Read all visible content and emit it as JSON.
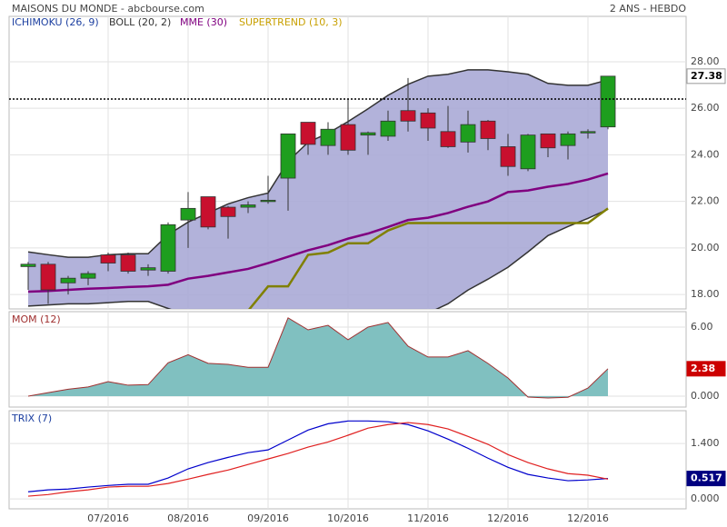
{
  "chart_data": [
    {
      "type": "candlestick",
      "title": "MAISONS DU MONDE - abcbourse.com",
      "subtitle": "2 ANS - HEBDO",
      "categories": [
        null,
        null,
        null,
        null,
        "07/2016",
        null,
        null,
        null,
        "08/2016",
        null,
        null,
        null,
        "09/2016",
        null,
        null,
        null,
        "10/2016",
        null,
        null,
        null,
        "11/2016",
        null,
        null,
        null,
        "12/2016",
        null,
        null,
        null,
        "12/2016",
        null
      ],
      "open": [
        19.2,
        19.3,
        18.5,
        18.7,
        19.7,
        19.7,
        19.05,
        19.0,
        21.2,
        22.2,
        21.75,
        21.75,
        22.0,
        23.0,
        25.4,
        24.4,
        25.3,
        24.85,
        24.8,
        25.9,
        25.8,
        25.0,
        24.55,
        25.45,
        24.35,
        23.4,
        24.9,
        24.4,
        24.95,
        25.2
      ],
      "high": [
        19.4,
        19.4,
        18.8,
        19.0,
        19.8,
        19.8,
        19.3,
        21.1,
        22.4,
        22.2,
        21.8,
        22.0,
        23.1,
        24.9,
        25.4,
        25.4,
        26.4,
        25.0,
        25.9,
        27.3,
        26.0,
        26.1,
        25.9,
        25.5,
        24.9,
        24.9,
        24.9,
        25.0,
        25.1,
        27.38
      ],
      "low": [
        18.2,
        17.6,
        18.0,
        18.4,
        19.0,
        18.9,
        18.8,
        18.9,
        20.0,
        20.8,
        20.4,
        21.5,
        21.9,
        21.6,
        24.0,
        24.0,
        24.0,
        24.0,
        24.6,
        25.0,
        24.6,
        24.3,
        24.1,
        24.2,
        23.1,
        23.3,
        23.9,
        23.8,
        24.7,
        25.1
      ],
      "close": [
        19.3,
        18.2,
        18.7,
        18.9,
        19.35,
        19.0,
        19.15,
        21.0,
        21.7,
        20.9,
        21.35,
        21.85,
        22.05,
        24.9,
        24.45,
        25.1,
        24.2,
        24.95,
        25.45,
        25.45,
        25.15,
        24.35,
        25.3,
        24.7,
        23.5,
        24.85,
        24.3,
        24.9,
        25.0,
        27.38
      ],
      "up_color": "#1e9e1e",
      "down_color": "#c8102e",
      "series": [
        {
          "name": "ICHIMOKU (26, 9)",
          "color": "#1c3fa0"
        },
        {
          "name": "BOLL (20, 2)",
          "color": "#333333",
          "fill": "#aaaad6",
          "upper": [
            19.83,
            19.71,
            19.6,
            19.6,
            19.71,
            19.75,
            19.75,
            20.57,
            21.11,
            21.5,
            21.89,
            22.16,
            22.36,
            23.72,
            24.54,
            24.93,
            25.43,
            25.98,
            26.56,
            27.03,
            27.38,
            27.46,
            27.65,
            27.65,
            27.57,
            27.46,
            27.07,
            26.99,
            26.99,
            27.22
          ],
          "lower": [
            17.5,
            17.55,
            17.6,
            17.6,
            17.65,
            17.7,
            17.7,
            17.4,
            17.1,
            16.9,
            16.8,
            16.7,
            16.6,
            16.3,
            16.1,
            16.0,
            15.9,
            15.9,
            16.0,
            16.5,
            17.2,
            17.6,
            18.19,
            18.66,
            19.17,
            19.83,
            20.53,
            20.92,
            21.27,
            21.66
          ]
        },
        {
          "name": "MME (30)",
          "color": "#800080",
          "values": [
            18.12,
            18.15,
            18.2,
            18.25,
            18.28,
            18.32,
            18.35,
            18.42,
            18.68,
            18.8,
            18.95,
            19.1,
            19.35,
            19.62,
            19.9,
            20.12,
            20.4,
            20.62,
            20.9,
            21.2,
            21.3,
            21.5,
            21.77,
            22.0,
            22.4,
            22.47,
            22.63,
            22.75,
            22.94,
            23.2
          ]
        },
        {
          "name": "SUPERTREND (10, 3)",
          "color": "#c8a000",
          "line_color": "#808000",
          "values": [
            null,
            null,
            null,
            null,
            null,
            null,
            null,
            null,
            null,
            null,
            null,
            17.3,
            18.35,
            18.35,
            19.7,
            19.8,
            20.2,
            20.2,
            20.75,
            21.07,
            21.07,
            21.07,
            21.07,
            21.07,
            21.07,
            21.07,
            21.07,
            21.07,
            21.07,
            21.7
          ]
        }
      ],
      "hline": 26.4,
      "marker": {
        "value": 27.38,
        "label": "27.38"
      },
      "ylim": [
        17.38,
        29.95
      ],
      "yticks": [
        {
          "value": 18,
          "label": "18.00"
        },
        {
          "value": 20,
          "label": "20.00"
        },
        {
          "value": 22,
          "label": "22.00"
        },
        {
          "value": 24,
          "label": "24.00"
        },
        {
          "value": 26,
          "label": "26.00"
        },
        {
          "value": 28,
          "label": "28.00"
        }
      ],
      "grid": true
    },
    {
      "type": "area",
      "title": "MOM (12)",
      "color": "#80c0c0",
      "line_color": "#a03030",
      "values": [
        0,
        0.3,
        0.6,
        0.8,
        1.26,
        0.95,
        1.0,
        2.9,
        3.6,
        2.85,
        2.76,
        2.5,
        2.5,
        6.8,
        5.76,
        6.15,
        4.9,
        6.0,
        6.4,
        4.34,
        3.4,
        3.4,
        3.95,
        2.84,
        1.58,
        -0.08,
        -0.16,
        -0.1,
        0.7,
        2.38
      ],
      "marker": {
        "value": 2.38,
        "label": "2.38",
        "color": "#cc0000"
      },
      "ylim": [
        -0.95,
        7.34
      ],
      "yticks": [
        {
          "value": 0,
          "label": "0.000"
        },
        {
          "value": 6,
          "label": "6.00"
        }
      ],
      "grid": true
    },
    {
      "type": "line",
      "title": "TRIX (7)",
      "series": [
        {
          "color": "#0000cc",
          "values": [
            0.18,
            0.23,
            0.25,
            0.3,
            0.34,
            0.37,
            0.37,
            0.53,
            0.76,
            0.92,
            1.05,
            1.17,
            1.24,
            1.49,
            1.74,
            1.9,
            1.97,
            1.97,
            1.95,
            1.88,
            1.72,
            1.51,
            1.28,
            1.03,
            0.8,
            0.62,
            0.53,
            0.46,
            0.48,
            0.517
          ]
        },
        {
          "color": "#e02020",
          "values": [
            0.07,
            0.11,
            0.18,
            0.23,
            0.3,
            0.32,
            0.32,
            0.39,
            0.5,
            0.62,
            0.73,
            0.87,
            1.01,
            1.15,
            1.31,
            1.44,
            1.61,
            1.79,
            1.88,
            1.93,
            1.88,
            1.77,
            1.58,
            1.38,
            1.12,
            0.92,
            0.76,
            0.64,
            0.6,
            0.5
          ]
        }
      ],
      "marker": {
        "value": 0.517,
        "label": "0.517",
        "color": "#000080"
      },
      "ylim": [
        -0.25,
        2.23
      ],
      "yticks": [
        {
          "value": 0,
          "label": "0.000"
        },
        {
          "value": 1.4,
          "label": "1.400"
        }
      ],
      "grid": true
    }
  ]
}
